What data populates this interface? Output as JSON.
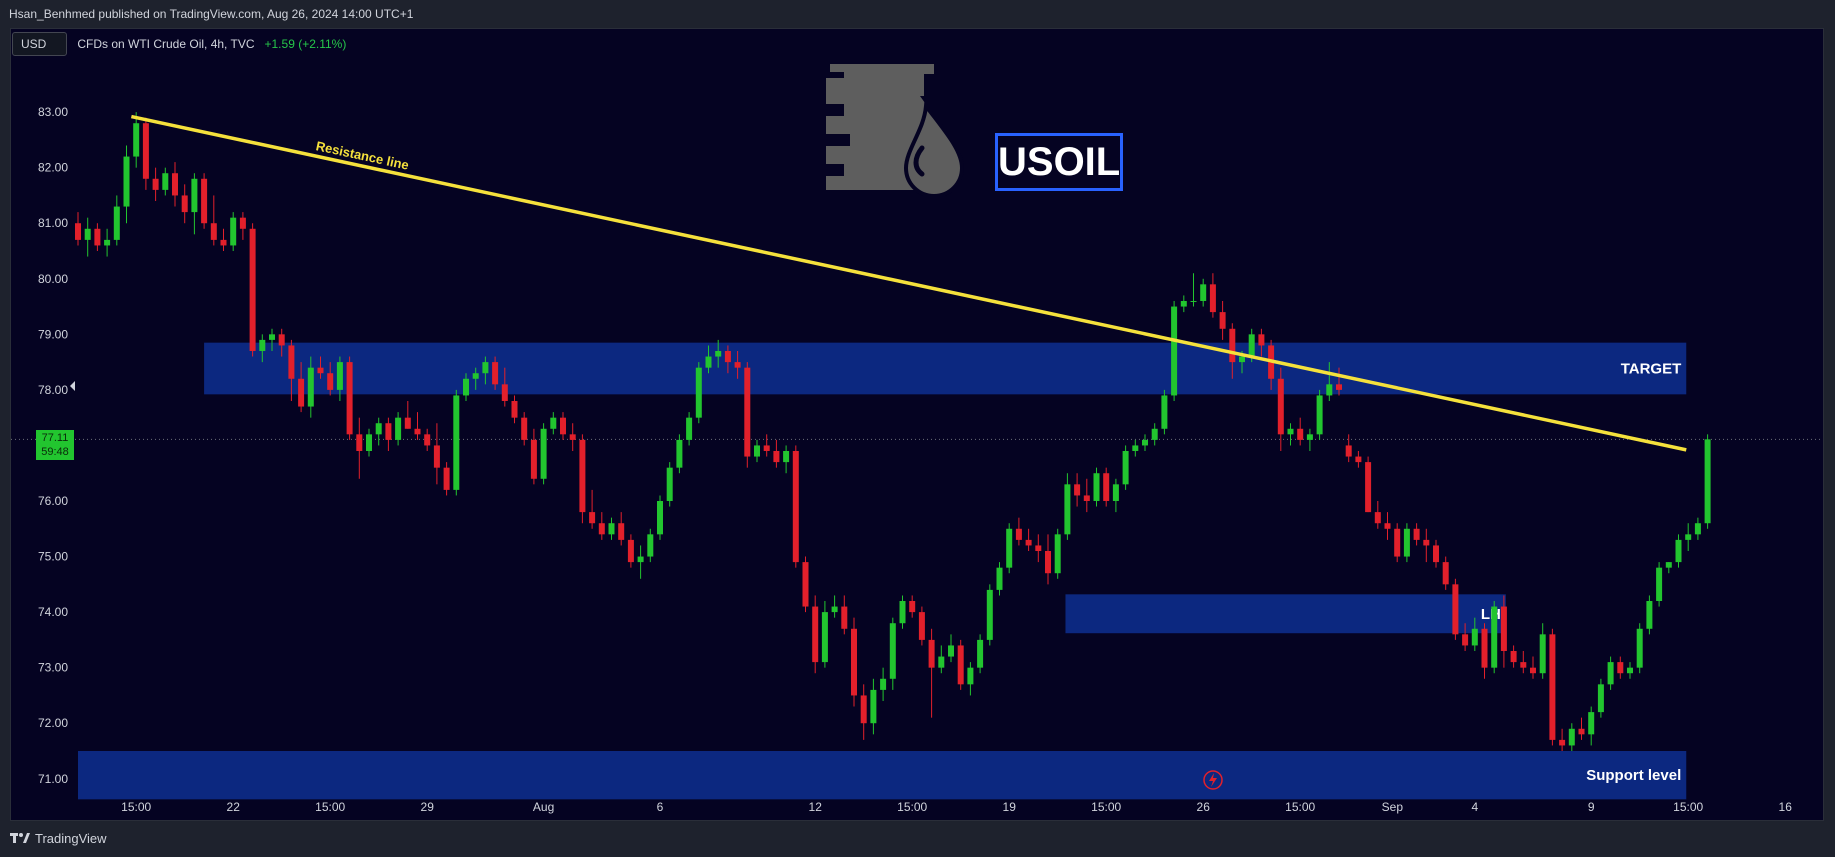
{
  "header": {
    "publisher_line": "Hsan_Benhmed published on TradingView.com, Aug 26, 2024 14:00 UTC+1"
  },
  "legend": {
    "currency_button": "USD",
    "symbol": "CFDs on WTI Crude Oil, 4h, TVC",
    "change": "+1.59 (+2.11%)"
  },
  "price_label": {
    "price": "77.11",
    "countdown": "59:48"
  },
  "logo_text": "USOIL",
  "footer": {
    "brand": "TradingView"
  },
  "colors": {
    "up": "#22c52f",
    "down": "#e2202b",
    "zone": "#0d2a86",
    "trendline": "#f5e13c",
    "background": "#050322",
    "last_price": "#22c52f"
  },
  "chart_data": {
    "type": "candlestick",
    "ylim": [
      70.6,
      84.1
    ],
    "y_ticks": [
      "71.00",
      "72.00",
      "73.00",
      "74.00",
      "75.00",
      "76.00",
      "77.00",
      "78.00",
      "79.00",
      "80.00",
      "81.00",
      "82.00",
      "83.00"
    ],
    "x_ticks": [
      {
        "label": "15:00",
        "i": 6
      },
      {
        "label": "22",
        "i": 16
      },
      {
        "label": "15:00",
        "i": 26
      },
      {
        "label": "29",
        "i": 36
      },
      {
        "label": "Aug",
        "i": 48
      },
      {
        "label": "6",
        "i": 60
      },
      {
        "label": "12",
        "i": 76
      },
      {
        "label": "15:00",
        "i": 86
      },
      {
        "label": "19",
        "i": 96
      },
      {
        "label": "15:00",
        "i": 106
      },
      {
        "label": "26",
        "i": 116
      },
      {
        "label": "15:00",
        "i": 126
      },
      {
        "label": "Sep",
        "i": 135.5
      },
      {
        "label": "4",
        "i": 144
      },
      {
        "label": "9",
        "i": 156
      },
      {
        "label": "15:00",
        "i": 166
      },
      {
        "label": "16",
        "i": 176
      }
    ],
    "last_price": 77.11,
    "zones": [
      {
        "label": "TARGET",
        "y1": 77.92,
        "y2": 78.85,
        "i1": 13,
        "i2": 165.8
      },
      {
        "label": "LH",
        "y1": 73.62,
        "y2": 74.32,
        "i1": 101.8,
        "i2": 147.2
      },
      {
        "label": "Support level",
        "y1": 70.63,
        "y2": 71.5,
        "i1": 0,
        "i2": 165.8
      }
    ],
    "trendline": {
      "label": "Resistance line",
      "from": {
        "i": 5.5,
        "y": 82.92
      },
      "to": {
        "i": 165.8,
        "y": 76.92
      }
    },
    "candles": [
      [
        81.0,
        81.2,
        80.6,
        80.7
      ],
      [
        80.7,
        81.1,
        80.4,
        80.9
      ],
      [
        80.9,
        81.0,
        80.5,
        80.6
      ],
      [
        80.6,
        80.9,
        80.4,
        80.7
      ],
      [
        80.7,
        81.5,
        80.6,
        81.3
      ],
      [
        81.3,
        82.4,
        81.0,
        82.2
      ],
      [
        82.2,
        83.0,
        82.0,
        82.8
      ],
      [
        82.8,
        82.9,
        81.6,
        81.8
      ],
      [
        81.8,
        82.0,
        81.4,
        81.6
      ],
      [
        81.6,
        82.0,
        81.5,
        81.9
      ],
      [
        81.9,
        82.1,
        81.3,
        81.5
      ],
      [
        81.5,
        81.7,
        81.0,
        81.2
      ],
      [
        81.2,
        81.9,
        80.8,
        81.8
      ],
      [
        81.8,
        81.9,
        80.9,
        81.0
      ],
      [
        81.0,
        81.5,
        80.6,
        80.7
      ],
      [
        80.7,
        80.9,
        80.5,
        80.6
      ],
      [
        80.6,
        81.2,
        80.5,
        81.1
      ],
      [
        81.1,
        81.2,
        80.7,
        80.9
      ],
      [
        80.9,
        81.0,
        78.6,
        78.7
      ],
      [
        78.7,
        79.0,
        78.5,
        78.9
      ],
      [
        78.9,
        79.1,
        78.7,
        79.0
      ],
      [
        79.0,
        79.1,
        78.6,
        78.8
      ],
      [
        78.8,
        78.9,
        77.8,
        78.2
      ],
      [
        78.2,
        78.5,
        77.6,
        77.7
      ],
      [
        77.7,
        78.6,
        77.5,
        78.4
      ],
      [
        78.4,
        78.6,
        78.2,
        78.3
      ],
      [
        78.3,
        78.5,
        77.9,
        78.0
      ],
      [
        78.0,
        78.6,
        77.8,
        78.5
      ],
      [
        78.5,
        78.6,
        77.1,
        77.2
      ],
      [
        77.2,
        77.5,
        76.4,
        76.9
      ],
      [
        76.9,
        77.3,
        76.8,
        77.2
      ],
      [
        77.2,
        77.5,
        77.0,
        77.4
      ],
      [
        77.4,
        77.5,
        76.9,
        77.1
      ],
      [
        77.1,
        77.6,
        77.0,
        77.5
      ],
      [
        77.5,
        77.8,
        77.3,
        77.3
      ],
      [
        77.3,
        77.6,
        77.1,
        77.2
      ],
      [
        77.2,
        77.3,
        76.9,
        77.0
      ],
      [
        77.0,
        77.4,
        76.3,
        76.6
      ],
      [
        76.6,
        76.7,
        76.1,
        76.2
      ],
      [
        76.2,
        78.0,
        76.1,
        77.9
      ],
      [
        77.9,
        78.3,
        77.8,
        78.2
      ],
      [
        78.2,
        78.4,
        78.0,
        78.3
      ],
      [
        78.3,
        78.6,
        78.1,
        78.5
      ],
      [
        78.5,
        78.6,
        78.0,
        78.1
      ],
      [
        78.1,
        78.4,
        77.7,
        77.8
      ],
      [
        77.8,
        77.9,
        77.4,
        77.5
      ],
      [
        77.5,
        77.6,
        77.0,
        77.1
      ],
      [
        77.1,
        77.3,
        76.3,
        76.4
      ],
      [
        76.4,
        77.4,
        76.3,
        77.3
      ],
      [
        77.3,
        77.6,
        77.2,
        77.5
      ],
      [
        77.5,
        77.6,
        77.1,
        77.2
      ],
      [
        77.2,
        77.4,
        76.9,
        77.1
      ],
      [
        77.1,
        77.2,
        75.6,
        75.8
      ],
      [
        75.8,
        76.2,
        75.5,
        75.6
      ],
      [
        75.6,
        75.8,
        75.3,
        75.4
      ],
      [
        75.4,
        75.7,
        75.3,
        75.6
      ],
      [
        75.6,
        75.8,
        75.2,
        75.3
      ],
      [
        75.3,
        75.4,
        74.8,
        74.9
      ],
      [
        74.9,
        75.2,
        74.6,
        75.0
      ],
      [
        75.0,
        75.5,
        74.9,
        75.4
      ],
      [
        75.4,
        76.1,
        75.3,
        76.0
      ],
      [
        76.0,
        76.7,
        75.9,
        76.6
      ],
      [
        76.6,
        77.2,
        76.5,
        77.1
      ],
      [
        77.1,
        77.6,
        77.0,
        77.5
      ],
      [
        77.5,
        78.5,
        77.4,
        78.4
      ],
      [
        78.4,
        78.8,
        78.3,
        78.6
      ],
      [
        78.6,
        78.9,
        78.4,
        78.7
      ],
      [
        78.7,
        78.8,
        78.3,
        78.5
      ],
      [
        78.5,
        78.7,
        78.2,
        78.4
      ],
      [
        78.4,
        78.5,
        76.6,
        76.8
      ],
      [
        76.8,
        77.1,
        76.7,
        77.0
      ],
      [
        77.0,
        77.2,
        76.8,
        76.9
      ],
      [
        76.9,
        77.1,
        76.6,
        76.7
      ],
      [
        76.7,
        77.0,
        76.5,
        76.9
      ],
      [
        76.9,
        77.0,
        74.8,
        74.9
      ],
      [
        74.9,
        75.0,
        74.0,
        74.1
      ],
      [
        74.1,
        74.3,
        72.9,
        73.1
      ],
      [
        73.1,
        74.2,
        73.0,
        74.0
      ],
      [
        74.0,
        74.3,
        73.9,
        74.1
      ],
      [
        74.1,
        74.3,
        73.6,
        73.7
      ],
      [
        73.7,
        73.9,
        72.3,
        72.5
      ],
      [
        72.5,
        72.7,
        71.7,
        72.0
      ],
      [
        72.0,
        72.8,
        71.8,
        72.6
      ],
      [
        72.6,
        73.0,
        72.4,
        72.8
      ],
      [
        72.8,
        73.9,
        72.6,
        73.8
      ],
      [
        73.8,
        74.3,
        73.7,
        74.2
      ],
      [
        74.2,
        74.3,
        73.9,
        74.0
      ],
      [
        74.0,
        74.1,
        73.4,
        73.5
      ],
      [
        73.5,
        73.7,
        72.1,
        73.0
      ],
      [
        73.0,
        73.4,
        72.9,
        73.2
      ],
      [
        73.2,
        73.6,
        73.1,
        73.4
      ],
      [
        73.4,
        73.5,
        72.6,
        72.7
      ],
      [
        72.7,
        73.1,
        72.5,
        73.0
      ],
      [
        73.0,
        73.6,
        72.9,
        73.5
      ],
      [
        73.5,
        74.5,
        73.4,
        74.4
      ],
      [
        74.4,
        74.9,
        74.3,
        74.8
      ],
      [
        74.8,
        75.6,
        74.7,
        75.5
      ],
      [
        75.5,
        75.7,
        75.2,
        75.3
      ],
      [
        75.3,
        75.5,
        75.1,
        75.2
      ],
      [
        75.2,
        75.4,
        74.9,
        75.1
      ],
      [
        75.1,
        75.4,
        74.5,
        74.7
      ],
      [
        74.7,
        75.5,
        74.6,
        75.4
      ],
      [
        75.4,
        76.5,
        75.3,
        76.3
      ],
      [
        76.3,
        76.5,
        75.9,
        76.1
      ],
      [
        76.1,
        76.4,
        75.8,
        76.0
      ],
      [
        76.0,
        76.6,
        75.9,
        76.5
      ],
      [
        76.5,
        76.6,
        75.9,
        76.0
      ],
      [
        76.0,
        76.4,
        75.8,
        76.3
      ],
      [
        76.3,
        77.0,
        76.2,
        76.9
      ],
      [
        76.9,
        77.1,
        76.8,
        77.0
      ],
      [
        77.0,
        77.2,
        76.9,
        77.1
      ],
      [
        77.1,
        77.4,
        77.0,
        77.3
      ],
      [
        77.3,
        78.0,
        77.2,
        77.9
      ],
      [
        77.9,
        79.6,
        77.8,
        79.5
      ],
      [
        79.5,
        79.7,
        79.4,
        79.6
      ],
      [
        79.6,
        80.1,
        79.5,
        79.6
      ],
      [
        79.6,
        80.0,
        79.5,
        79.9
      ],
      [
        79.9,
        80.1,
        79.3,
        79.4
      ],
      [
        79.4,
        79.6,
        78.9,
        79.1
      ],
      [
        79.1,
        79.2,
        78.2,
        78.5
      ],
      [
        78.5,
        78.7,
        78.3,
        78.6
      ],
      [
        78.6,
        79.1,
        78.5,
        79.0
      ],
      [
        79.0,
        79.1,
        78.6,
        78.8
      ],
      [
        78.8,
        78.9,
        78.0,
        78.2
      ],
      [
        78.2,
        78.4,
        76.9,
        77.2
      ],
      [
        77.2,
        77.4,
        77.0,
        77.3
      ],
      [
        77.3,
        77.5,
        77.0,
        77.1
      ],
      [
        77.1,
        77.3,
        76.9,
        77.2
      ],
      [
        77.2,
        78.0,
        77.1,
        77.9
      ],
      [
        77.9,
        78.5,
        77.8,
        78.1
      ],
      [
        78.1,
        78.4,
        77.9,
        78.0
      ],
      [
        77.0,
        77.2,
        76.7,
        76.8
      ],
      [
        76.8,
        76.9,
        76.6,
        76.7
      ],
      [
        76.7,
        76.8,
        75.8,
        75.8
      ],
      [
        75.8,
        76.0,
        75.5,
        75.6
      ],
      [
        75.6,
        75.8,
        75.3,
        75.5
      ],
      [
        75.5,
        75.6,
        74.9,
        75.0
      ],
      [
        75.0,
        75.6,
        74.9,
        75.5
      ],
      [
        75.5,
        75.6,
        75.2,
        75.3
      ],
      [
        75.3,
        75.5,
        74.9,
        75.2
      ],
      [
        75.2,
        75.3,
        74.8,
        74.9
      ],
      [
        74.9,
        75.0,
        74.4,
        74.5
      ],
      [
        74.5,
        74.6,
        73.5,
        73.6
      ],
      [
        73.6,
        73.8,
        73.3,
        73.4
      ],
      [
        73.4,
        73.9,
        73.3,
        73.7
      ],
      [
        73.7,
        73.8,
        72.8,
        73.0
      ],
      [
        73.0,
        74.2,
        72.9,
        74.1
      ],
      [
        74.1,
        74.3,
        73.0,
        73.3
      ],
      [
        73.3,
        73.4,
        73.0,
        73.1
      ],
      [
        73.1,
        73.3,
        72.9,
        73.0
      ],
      [
        73.0,
        73.2,
        72.8,
        72.9
      ],
      [
        72.9,
        73.8,
        72.8,
        73.6
      ],
      [
        73.6,
        73.7,
        71.6,
        71.7
      ],
      [
        71.7,
        71.9,
        71.5,
        71.6
      ],
      [
        71.6,
        72.0,
        71.5,
        71.9
      ],
      [
        71.9,
        72.1,
        71.7,
        71.8
      ],
      [
        71.8,
        72.3,
        71.6,
        72.2
      ],
      [
        72.2,
        72.8,
        72.1,
        72.7
      ],
      [
        72.7,
        73.2,
        72.6,
        73.1
      ],
      [
        73.1,
        73.2,
        72.8,
        72.9
      ],
      [
        72.9,
        73.1,
        72.8,
        73.0
      ],
      [
        73.0,
        73.8,
        72.9,
        73.7
      ],
      [
        73.7,
        74.3,
        73.6,
        74.2
      ],
      [
        74.2,
        74.9,
        74.1,
        74.8
      ],
      [
        74.8,
        74.9,
        74.7,
        74.9
      ],
      [
        74.9,
        75.4,
        74.8,
        75.3
      ],
      [
        75.3,
        75.6,
        75.1,
        75.4
      ],
      [
        75.4,
        75.7,
        75.3,
        75.6
      ],
      [
        75.6,
        77.2,
        75.5,
        77.11
      ]
    ]
  }
}
